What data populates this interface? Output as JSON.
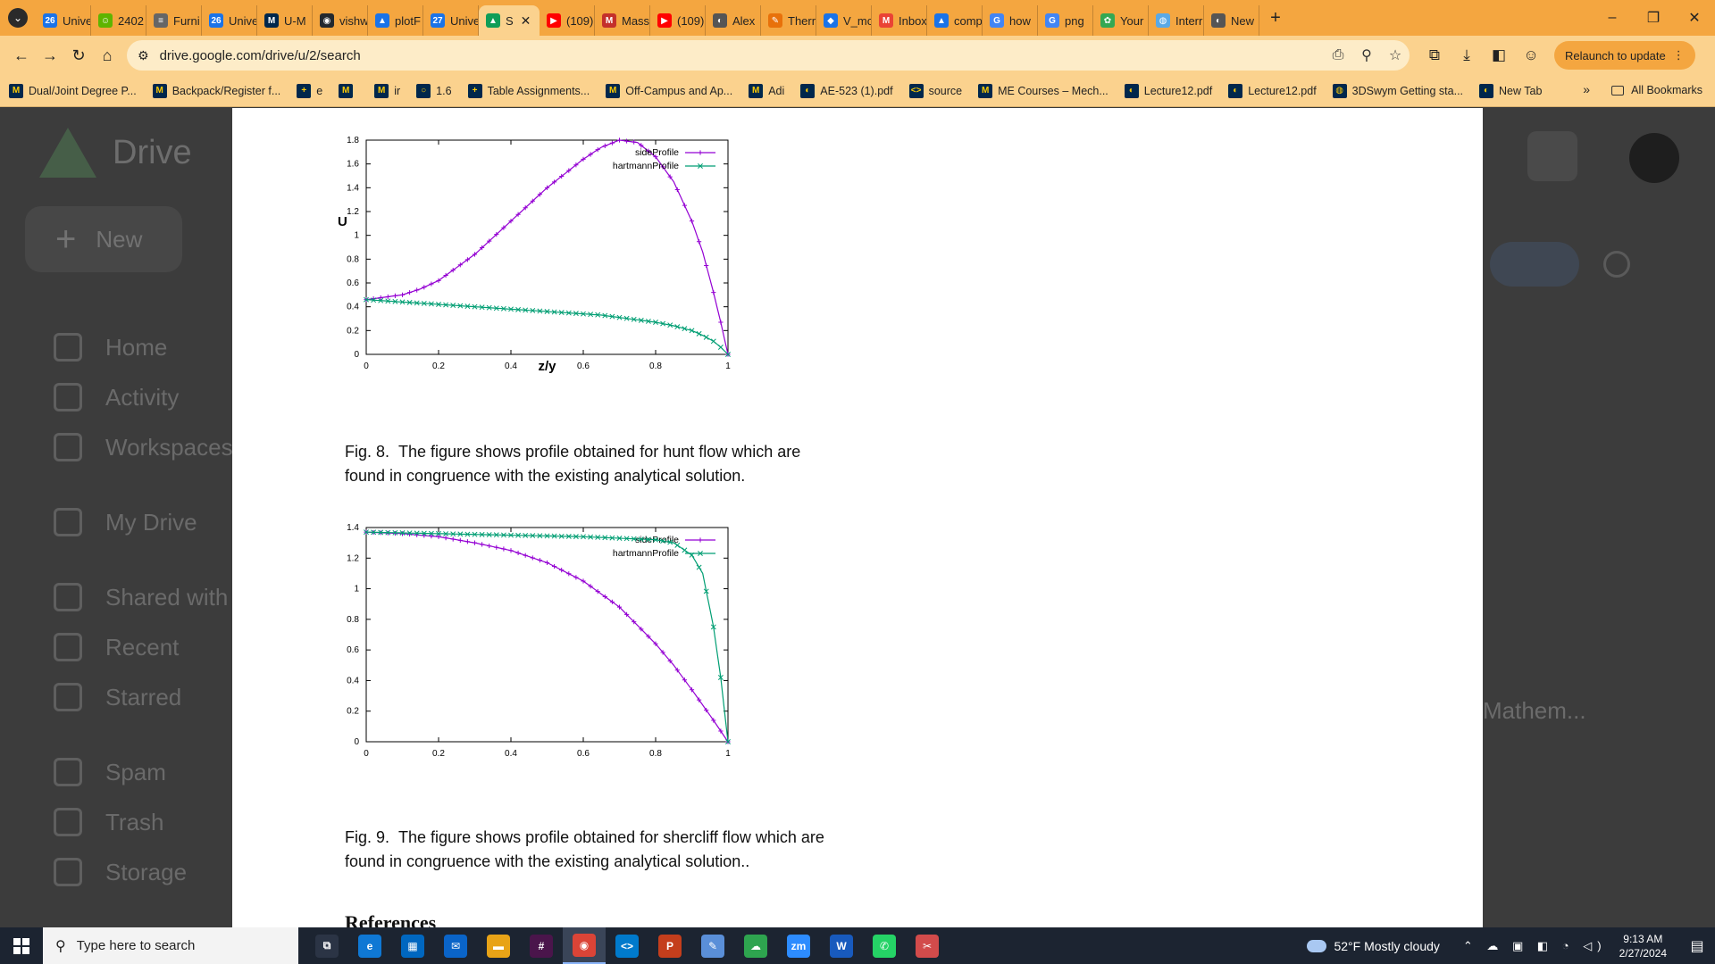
{
  "browser": {
    "tabs": [
      {
        "label": "Unive",
        "fav": "26",
        "color": "#1a73e8"
      },
      {
        "label": "2402",
        "fav": "☺",
        "color": "#5fb400"
      },
      {
        "label": "Furni",
        "fav": "≡",
        "color": "#666666"
      },
      {
        "label": "Unive",
        "fav": "26",
        "color": "#1a73e8"
      },
      {
        "label": "U-M",
        "fav": "M",
        "color": "#00274c"
      },
      {
        "label": "vishw",
        "fav": "◉",
        "color": "#24292e"
      },
      {
        "label": "plotF",
        "fav": "▲",
        "color": "#1a73e8"
      },
      {
        "label": "Unive",
        "fav": "27",
        "color": "#1a73e8"
      },
      {
        "label": "S",
        "fav": "▲",
        "color": "#0f9d58",
        "active": true
      },
      {
        "label": "(109)",
        "fav": "▶",
        "color": "#ff0000"
      },
      {
        "label": "Mass",
        "fav": "M",
        "color": "#c4302b"
      },
      {
        "label": "(109)",
        "fav": "▶",
        "color": "#ff0000"
      },
      {
        "label": "Alex",
        "fav": "◐",
        "color": "#555555"
      },
      {
        "label": "Therr",
        "fav": "✎",
        "color": "#e8710a"
      },
      {
        "label": "V_mc",
        "fav": "◆",
        "color": "#1a73e8"
      },
      {
        "label": "Inbox",
        "fav": "M",
        "color": "#ea4335"
      },
      {
        "label": "comp",
        "fav": "▲",
        "color": "#1a73e8"
      },
      {
        "label": "how",
        "fav": "G",
        "color": "#4285f4"
      },
      {
        "label": "png",
        "fav": "G",
        "color": "#4285f4"
      },
      {
        "label": "Your",
        "fav": "✿",
        "color": "#34a853"
      },
      {
        "label": "Interr",
        "fav": "◍",
        "color": "#5aa9e6"
      },
      {
        "label": "New",
        "fav": "◐",
        "color": "#555555"
      }
    ],
    "active_tab_close": "✕",
    "new_tab": "+",
    "window": {
      "minimize": "–",
      "restore": "❐",
      "close": "✕"
    },
    "nav": {
      "back": "←",
      "forward": "→",
      "reload": "↻",
      "home": "⌂"
    },
    "address": "drive.google.com/drive/u/2/search",
    "omnibox_icons": [
      "⎙",
      "⚲",
      "☆"
    ],
    "toolbar_icons": [
      "⧉",
      "⤓",
      "◧",
      "☺"
    ],
    "relaunch_label": "Relaunch to update",
    "bookmarks": [
      {
        "label": "Dual/Joint Degree P...",
        "fav": "M"
      },
      {
        "label": "Backpack/Register f...",
        "fav": "M"
      },
      {
        "label": "e",
        "fav": "+"
      },
      {
        "label": "",
        "fav": "M"
      },
      {
        "label": "ir",
        "fav": "M"
      },
      {
        "label": "1.6",
        "fav": "○"
      },
      {
        "label": "Table Assignments...",
        "fav": "+"
      },
      {
        "label": "Off-Campus and Ap...",
        "fav": "M"
      },
      {
        "label": "Adi",
        "fav": "M"
      },
      {
        "label": "AE-523 (1).pdf",
        "fav": "◐"
      },
      {
        "label": "source",
        "fav": "<>"
      },
      {
        "label": "ME Courses – Mech...",
        "fav": "M"
      },
      {
        "label": "Lecture12.pdf",
        "fav": "◐"
      },
      {
        "label": "Lecture12.pdf",
        "fav": "◐"
      },
      {
        "label": "3DSwym Getting sta...",
        "fav": "◍"
      },
      {
        "label": "New Tab",
        "fav": "◐"
      }
    ],
    "bookmarks_more": "»",
    "all_bookmarks": "All Bookmarks"
  },
  "drive": {
    "logo_label": "Drive",
    "new_label": "New",
    "nav_items": [
      "Home",
      "Activity",
      "Workspaces",
      "My Drive",
      "Shared with",
      "Recent",
      "Starred",
      "Spam",
      "Trash",
      "Storage"
    ],
    "right_file_label": "Mathem..."
  },
  "chart_data": [
    {
      "type": "line",
      "title": "",
      "xlabel": "z/y",
      "ylabel": "U",
      "xlim": [
        0,
        1
      ],
      "ylim": [
        0,
        1.8
      ],
      "xticks": [
        "0",
        "0.2",
        "0.4",
        "0.6",
        "0.8",
        "1"
      ],
      "yticks": [
        "0",
        "0.2",
        "0.4",
        "0.6",
        "0.8",
        "1",
        "1.2",
        "1.4",
        "1.6",
        "1.8"
      ],
      "legend_position": "top-right",
      "x": [
        0,
        0.05,
        0.1,
        0.15,
        0.2,
        0.3,
        0.4,
        0.5,
        0.6,
        0.65,
        0.7,
        0.75,
        0.8,
        0.85,
        0.9,
        0.93,
        0.96,
        0.98,
        1.0
      ],
      "series": [
        {
          "name": "sideProfile",
          "color": "#9400d3",
          "marker": "+",
          "values": [
            0.46,
            0.48,
            0.5,
            0.55,
            0.62,
            0.84,
            1.12,
            1.4,
            1.64,
            1.74,
            1.8,
            1.78,
            1.66,
            1.45,
            1.12,
            0.86,
            0.52,
            0.27,
            0.0
          ]
        },
        {
          "name": "hartmannProfile",
          "color": "#009e73",
          "marker": "x",
          "values": [
            0.46,
            0.45,
            0.44,
            0.43,
            0.42,
            0.4,
            0.38,
            0.36,
            0.34,
            0.33,
            0.31,
            0.29,
            0.27,
            0.24,
            0.2,
            0.16,
            0.11,
            0.06,
            0.0
          ]
        }
      ],
      "caption_label": "Fig. 8.",
      "caption": "The figure shows profile obtained for hunt flow which are found in congruence with the existing analytical solution."
    },
    {
      "type": "line",
      "title": "",
      "xlabel": "",
      "ylabel": "",
      "xlim": [
        0,
        1
      ],
      "ylim": [
        0,
        1.4
      ],
      "xticks": [
        "0",
        "0.2",
        "0.4",
        "0.6",
        "0.8",
        "1"
      ],
      "yticks": [
        "0",
        "0.2",
        "0.4",
        "0.6",
        "0.8",
        "1",
        "1.2",
        "1.4"
      ],
      "legend_position": "top-right",
      "x": [
        0,
        0.1,
        0.2,
        0.3,
        0.4,
        0.5,
        0.6,
        0.7,
        0.8,
        0.85,
        0.9,
        0.93,
        0.96,
        0.98,
        1.0
      ],
      "series": [
        {
          "name": "sideProfile",
          "color": "#9400d3",
          "marker": "+",
          "values": [
            1.37,
            1.36,
            1.34,
            1.3,
            1.25,
            1.17,
            1.05,
            0.88,
            0.64,
            0.5,
            0.34,
            0.24,
            0.14,
            0.07,
            0.0
          ]
        },
        {
          "name": "hartmannProfile",
          "color": "#009e73",
          "marker": "x",
          "values": [
            1.37,
            1.365,
            1.36,
            1.355,
            1.35,
            1.345,
            1.34,
            1.33,
            1.32,
            1.3,
            1.22,
            1.1,
            0.75,
            0.42,
            0.0
          ]
        }
      ],
      "caption_label": "Fig. 9.",
      "caption": "The figure shows profile obtained for shercliff flow which are found in congruence with the existing analytical solution.."
    }
  ],
  "page": {
    "references": "References"
  },
  "taskbar": {
    "search_placeholder": "Type here to search",
    "apps": [
      {
        "name": "task-view",
        "glyph": "⧉",
        "color": "#2b3445"
      },
      {
        "name": "edge",
        "glyph": "e",
        "color": "#0f78d4"
      },
      {
        "name": "store",
        "glyph": "▦",
        "color": "#0067c0"
      },
      {
        "name": "mail",
        "glyph": "✉",
        "color": "#0a64c8"
      },
      {
        "name": "explorer",
        "glyph": "▬",
        "color": "#e8a317"
      },
      {
        "name": "slack",
        "glyph": "#",
        "color": "#4a154b"
      },
      {
        "name": "chrome",
        "glyph": "◉",
        "color": "#db4437",
        "active": true
      },
      {
        "name": "vscode",
        "glyph": "<>",
        "color": "#007acc"
      },
      {
        "name": "powerpoint",
        "glyph": "P",
        "color": "#c43e1c"
      },
      {
        "name": "notepad",
        "glyph": "✎",
        "color": "#5a8fd8"
      },
      {
        "name": "onedrive",
        "glyph": "☁",
        "color": "#2ea44f"
      },
      {
        "name": "zoom",
        "glyph": "zm",
        "color": "#2d8cff"
      },
      {
        "name": "word",
        "glyph": "W",
        "color": "#185abd"
      },
      {
        "name": "whatsapp",
        "glyph": "✆",
        "color": "#25d366"
      },
      {
        "name": "snip",
        "glyph": "✂",
        "color": "#d24b4b"
      }
    ],
    "weather": "52°F  Mostly cloudy",
    "time": "9:13 AM",
    "date": "2/27/2024",
    "tray_icons": "⌃ ☁ ▣ ◧ ◔ ◁)"
  }
}
